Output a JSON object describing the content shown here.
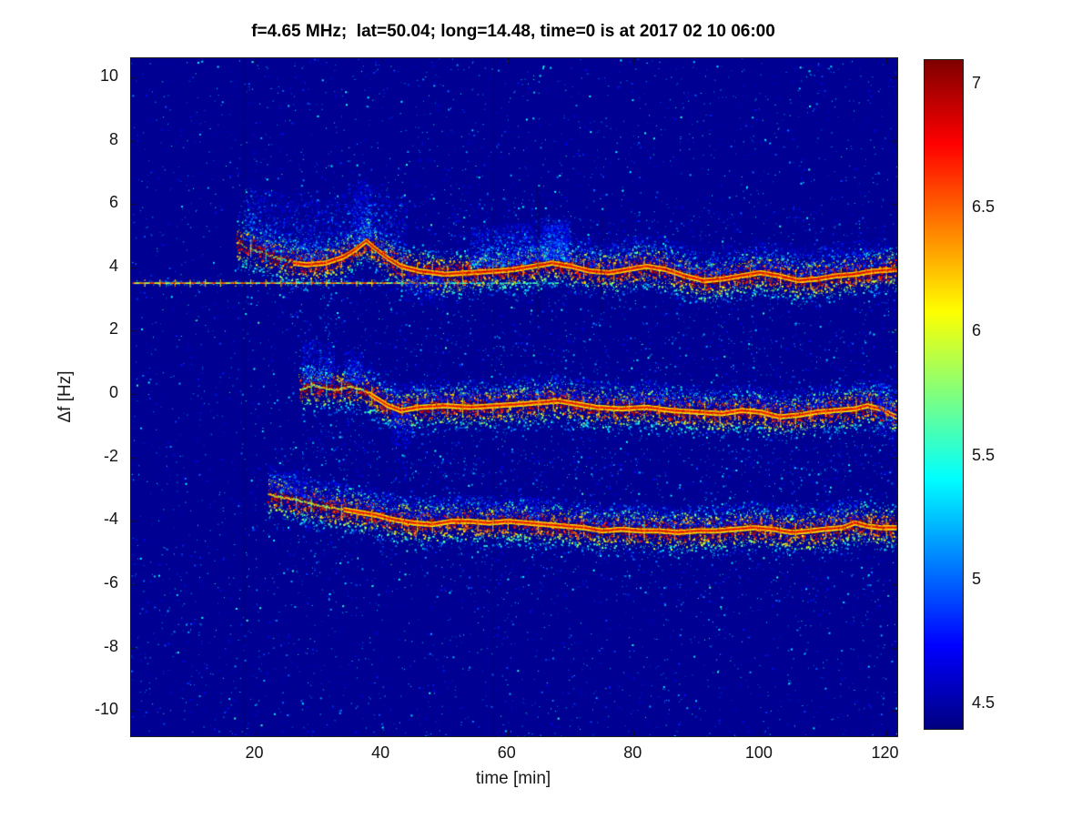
{
  "chart_data": {
    "type": "heatmap",
    "title": "f=4.65 MHz;  lat=50.04; long=14.48, time=0 is at 2017 02 10 06:00",
    "xlabel": "time [min]",
    "ylabel": "Δf [Hz]",
    "xlim": [
      0.3,
      121.8
    ],
    "ylim": [
      -10.8,
      10.6
    ],
    "xticks": [
      20,
      40,
      60,
      80,
      100,
      120
    ],
    "yticks": [
      10,
      8,
      6,
      4,
      2,
      0,
      -2,
      -4,
      -6,
      -8,
      -10
    ],
    "colorbar": {
      "min": 4.4,
      "max": 7.1,
      "ticks": [
        7,
        6.5,
        6,
        5.5,
        5,
        4.5
      ]
    },
    "colormap": "jet",
    "background_value": 4.45,
    "marker_period": 2.4,
    "noise": {
      "speckle_count": 14000,
      "band_speckle_count": 5200
    },
    "constant_line": {
      "y": 3.52,
      "t0": 0.5,
      "t1": 68,
      "strong_until": 48,
      "value": 6.5
    },
    "dark_columns": [
      {
        "t": 18.2,
        "y0": -10.8,
        "y1": 10.6,
        "alpha": 0.18
      },
      {
        "t": 57.8,
        "y0": -10.8,
        "y1": 10.6,
        "alpha": 0.1
      },
      {
        "t": 64.8,
        "y0": 2.2,
        "y1": 6.6,
        "alpha": 0.3
      },
      {
        "t": 74.9,
        "y0": 2.6,
        "y1": 5.6,
        "alpha": 0.22
      }
    ],
    "bands": [
      {
        "name": "upper-trace",
        "core_value": 7.05,
        "core_start": 26,
        "pre_style": "dash",
        "points": [
          [
            17,
            4.8
          ],
          [
            20,
            4.55
          ],
          [
            23,
            4.35
          ],
          [
            26,
            4.15
          ],
          [
            28,
            4.1
          ],
          [
            31,
            4.15
          ],
          [
            34,
            4.35
          ],
          [
            36,
            4.6
          ],
          [
            37.5,
            4.85
          ],
          [
            39,
            4.6
          ],
          [
            41,
            4.3
          ],
          [
            43,
            4.05
          ],
          [
            46,
            3.9
          ],
          [
            50,
            3.8
          ],
          [
            54,
            3.85
          ],
          [
            58,
            3.9
          ],
          [
            61,
            3.95
          ],
          [
            64,
            4.05
          ],
          [
            67,
            4.15
          ],
          [
            70,
            4.05
          ],
          [
            73,
            3.9
          ],
          [
            76,
            3.85
          ],
          [
            79,
            3.95
          ],
          [
            82,
            4.05
          ],
          [
            85,
            3.95
          ],
          [
            88,
            3.75
          ],
          [
            91,
            3.6
          ],
          [
            94,
            3.65
          ],
          [
            97,
            3.75
          ],
          [
            100,
            3.85
          ],
          [
            103,
            3.75
          ],
          [
            106,
            3.6
          ],
          [
            109,
            3.65
          ],
          [
            112,
            3.75
          ],
          [
            115,
            3.8
          ],
          [
            118,
            3.9
          ],
          [
            121.5,
            3.95
          ]
        ],
        "flares": [
          {
            "t": 31,
            "w": 26,
            "h": 1.9,
            "n": 2200,
            "vmax": 5.8
          },
          {
            "t": 37,
            "w": 3,
            "h": 1.7,
            "n": 500,
            "vmax": 6.2
          },
          {
            "t": 62,
            "w": 16,
            "h": 1.3,
            "n": 1800,
            "vmax": 6.3
          },
          {
            "t": 67.5,
            "w": 4,
            "h": 1.1,
            "n": 900,
            "vmax": 6.6
          },
          {
            "t": 90,
            "w": 60,
            "h": 0.9,
            "n": 2400,
            "vmax": 5.6
          },
          {
            "t": 47,
            "w": 6,
            "h": 0.9,
            "n": 300,
            "vmax": 5.3,
            "dir": -1
          }
        ]
      },
      {
        "name": "middle-trace",
        "core_value": 7.0,
        "core_start": 38,
        "pre_style": "solid",
        "points": [
          [
            27,
            0.15
          ],
          [
            29,
            0.3
          ],
          [
            31,
            0.2
          ],
          [
            33,
            0.15
          ],
          [
            35,
            0.25
          ],
          [
            37,
            0.15
          ],
          [
            39,
            -0.1
          ],
          [
            41,
            -0.35
          ],
          [
            43,
            -0.5
          ],
          [
            46,
            -0.4
          ],
          [
            50,
            -0.35
          ],
          [
            54,
            -0.4
          ],
          [
            58,
            -0.35
          ],
          [
            62,
            -0.3
          ],
          [
            65,
            -0.25
          ],
          [
            68,
            -0.2
          ],
          [
            71,
            -0.3
          ],
          [
            74,
            -0.4
          ],
          [
            78,
            -0.45
          ],
          [
            82,
            -0.4
          ],
          [
            86,
            -0.5
          ],
          [
            90,
            -0.55
          ],
          [
            94,
            -0.6
          ],
          [
            97,
            -0.5
          ],
          [
            100,
            -0.55
          ],
          [
            103,
            -0.7
          ],
          [
            106,
            -0.65
          ],
          [
            109,
            -0.55
          ],
          [
            112,
            -0.5
          ],
          [
            115,
            -0.45
          ],
          [
            117,
            -0.35
          ],
          [
            119,
            -0.45
          ],
          [
            121.5,
            -0.7
          ]
        ],
        "flares": [
          {
            "t": 30,
            "w": 5,
            "h": 1.3,
            "n": 500,
            "vmax": 5.9
          },
          {
            "t": 35.5,
            "w": 3,
            "h": 1.0,
            "n": 300,
            "vmax": 5.8
          },
          {
            "t": 43,
            "w": 3,
            "h": 1.0,
            "n": 250,
            "vmax": 5.4,
            "dir": -1
          },
          {
            "t": 60,
            "w": 50,
            "h": 0.7,
            "n": 1500,
            "vmax": 5.5
          },
          {
            "t": 100,
            "w": 40,
            "h": 0.7,
            "n": 1200,
            "vmax": 5.5
          },
          {
            "t": 120,
            "w": 3,
            "h": 1.0,
            "n": 300,
            "vmax": 5.8,
            "dir": 0
          }
        ]
      },
      {
        "name": "lower-trace",
        "core_value": 7.0,
        "core_start": 34,
        "pre_style": "solid",
        "points": [
          [
            22,
            -3.15
          ],
          [
            24,
            -3.25
          ],
          [
            26,
            -3.3
          ],
          [
            28,
            -3.4
          ],
          [
            30,
            -3.5
          ],
          [
            33,
            -3.6
          ],
          [
            36,
            -3.7
          ],
          [
            39,
            -3.8
          ],
          [
            42,
            -3.95
          ],
          [
            45,
            -4.05
          ],
          [
            48,
            -4.1
          ],
          [
            51,
            -4.0
          ],
          [
            54,
            -4.0
          ],
          [
            57,
            -4.05
          ],
          [
            60,
            -4.0
          ],
          [
            63,
            -4.05
          ],
          [
            66,
            -4.1
          ],
          [
            69,
            -4.15
          ],
          [
            72,
            -4.2
          ],
          [
            75,
            -4.3
          ],
          [
            78,
            -4.25
          ],
          [
            81,
            -4.3
          ],
          [
            84,
            -4.3
          ],
          [
            87,
            -4.35
          ],
          [
            90,
            -4.3
          ],
          [
            93,
            -4.3
          ],
          [
            96,
            -4.25
          ],
          [
            99,
            -4.2
          ],
          [
            102,
            -4.25
          ],
          [
            105,
            -4.35
          ],
          [
            108,
            -4.3
          ],
          [
            110,
            -4.25
          ],
          [
            113,
            -4.2
          ],
          [
            115,
            -4.05
          ],
          [
            117,
            -4.15
          ],
          [
            119,
            -4.2
          ],
          [
            121.5,
            -4.2
          ]
        ],
        "flares": [
          {
            "t": 25,
            "w": 6,
            "h": 0.8,
            "n": 300,
            "vmax": 5.5
          },
          {
            "t": 45,
            "w": 40,
            "h": 0.7,
            "n": 1400,
            "vmax": 5.5
          },
          {
            "t": 90,
            "w": 55,
            "h": 0.7,
            "n": 1600,
            "vmax": 5.6
          }
        ]
      }
    ]
  }
}
